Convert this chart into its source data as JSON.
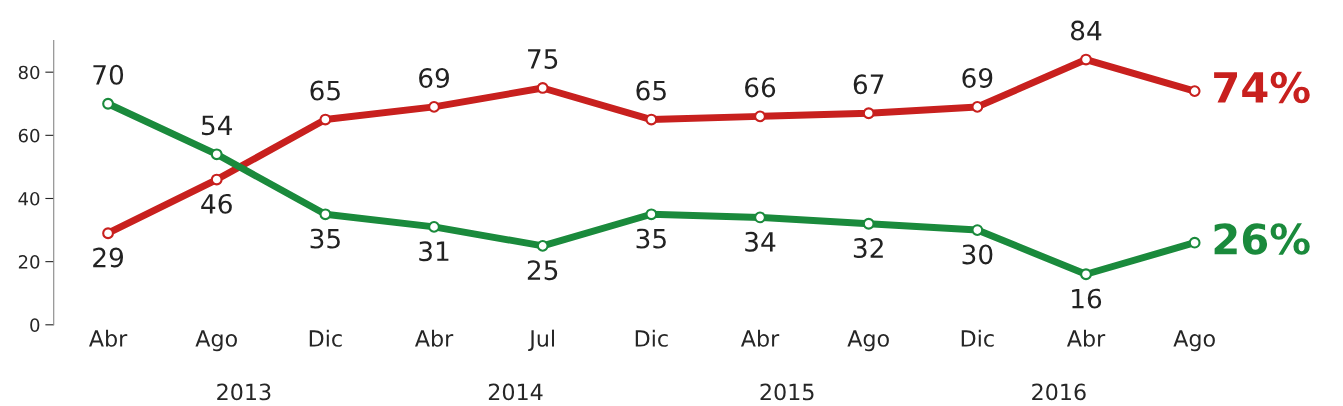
{
  "chart_data": {
    "type": "line",
    "categories": [
      "Abr",
      "Ago",
      "Dic",
      "Abr",
      "Jul",
      "Dic",
      "Abr",
      "Ago",
      "Dic",
      "Abr",
      "Ago"
    ],
    "series": [
      {
        "color": "#c8201e",
        "values": [
          29,
          46,
          65,
          69,
          75,
          65,
          66,
          67,
          69,
          84,
          74
        ],
        "value_labels": [
          "29",
          "46",
          "65",
          "69",
          "75",
          "65",
          "66",
          "67",
          "69",
          "84",
          "74%"
        ]
      },
      {
        "color": "#1a8a3c",
        "values": [
          70,
          54,
          35,
          31,
          25,
          35,
          34,
          32,
          30,
          16,
          26
        ],
        "value_labels": [
          "70",
          "54",
          "35",
          "31",
          "25",
          "35",
          "34",
          "32",
          "30",
          "16",
          "26%"
        ]
      }
    ],
    "ylim": [
      0,
      90
    ],
    "yticks": [
      0,
      20,
      40,
      60,
      80
    ],
    "annotations": [
      "2013",
      "2014",
      "2015",
      "2016"
    ],
    "marker": "circle",
    "line_style": "solid",
    "grid": false,
    "legend": false
  }
}
